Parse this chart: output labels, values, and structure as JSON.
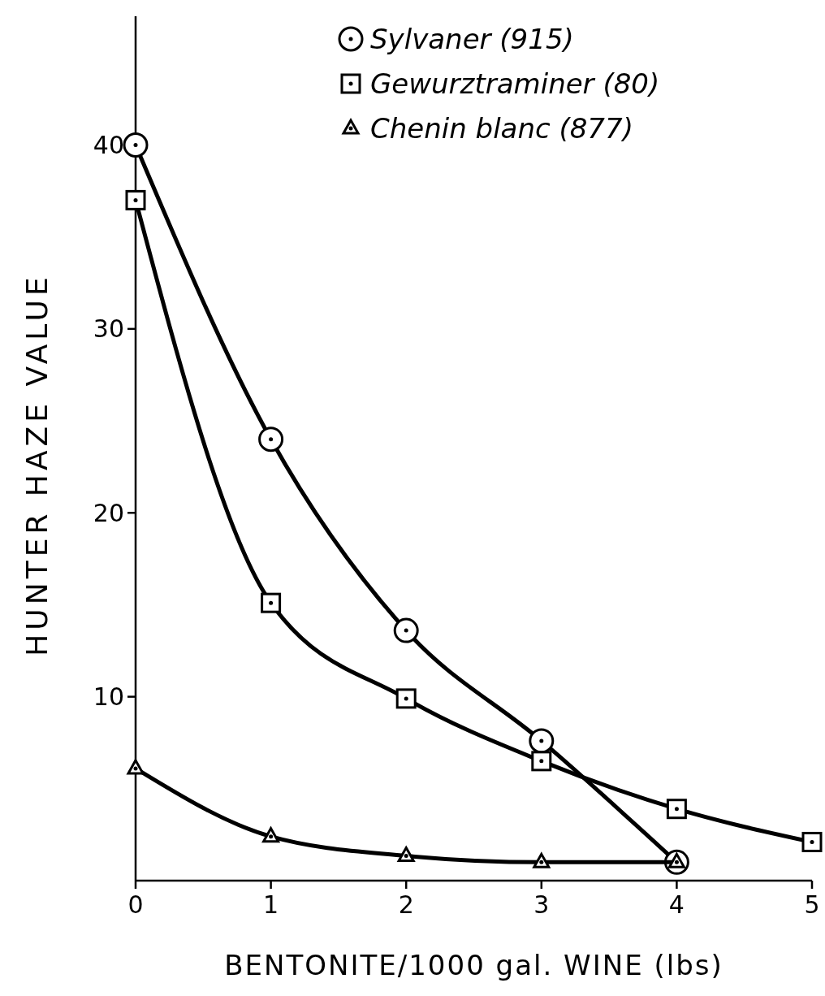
{
  "chart_data": {
    "type": "line",
    "xlabel": "BENTONITE/1000 gal. WINE (lbs)",
    "ylabel": "HUNTER HAZE VALUE",
    "xlim": [
      0,
      5
    ],
    "xticks": [
      0,
      1,
      2,
      3,
      4,
      5
    ],
    "ylim": [
      0,
      47
    ],
    "yticks": [
      10,
      20,
      30,
      40
    ],
    "legend": "top right",
    "grid": false,
    "line_style": "solid",
    "series": [
      {
        "name": "Sylvaner (915)",
        "color": "#000000",
        "marker": "circle",
        "x": [
          0,
          1,
          2,
          3,
          4
        ],
        "values": [
          40,
          24,
          13.6,
          7.6,
          1.0
        ]
      },
      {
        "name": "Gewurztraminer (80)",
        "color": "#000000",
        "marker": "square",
        "x": [
          0,
          1,
          2,
          3,
          4,
          5
        ],
        "values": [
          37,
          15.1,
          9.9,
          6.5,
          3.9,
          2.1
        ]
      },
      {
        "name": "Chenin blanc (877)",
        "color": "#000000",
        "marker": "triangle",
        "x": [
          0,
          1,
          2,
          3,
          4
        ],
        "values": [
          6.1,
          2.4,
          1.35,
          1.0,
          1.0
        ]
      }
    ]
  }
}
